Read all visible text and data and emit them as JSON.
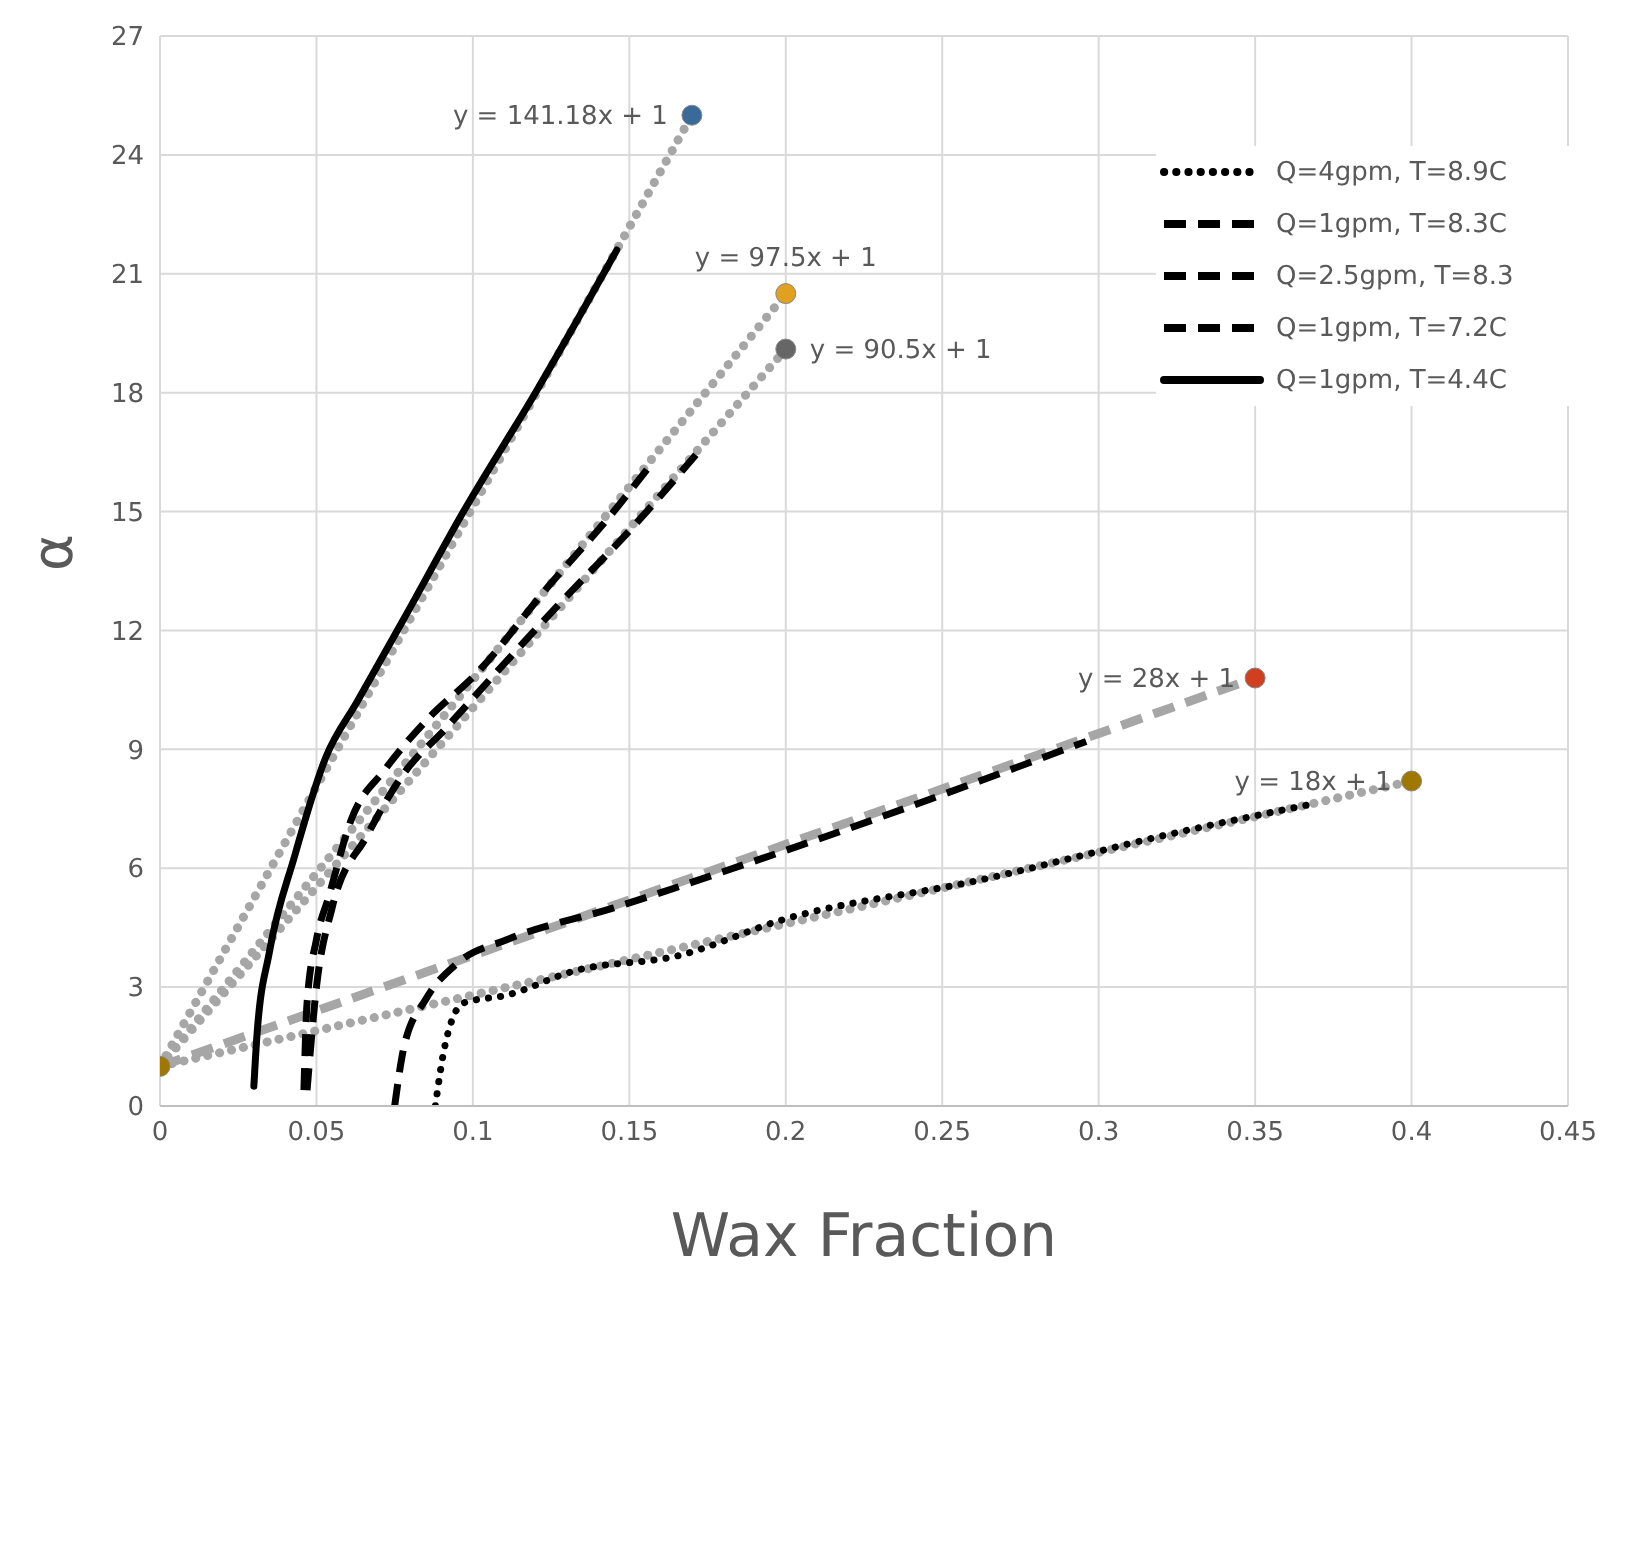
{
  "chart_data": {
    "type": "line",
    "xlabel": "Wax Fraction",
    "ylabel": "α",
    "xlim": [
      0,
      0.45
    ],
    "xticks": [
      0,
      0.05,
      0.1,
      0.15,
      0.2,
      0.25,
      0.3,
      0.35,
      0.4,
      0.45
    ],
    "ylim": [
      0,
      27
    ],
    "yticks": [
      0,
      3,
      6,
      9,
      12,
      15,
      18,
      21,
      24,
      27
    ],
    "grid": true,
    "legend": "top right",
    "series": [
      {
        "name": "Q=4gpm, T=8.9C",
        "color": "#000000",
        "line_style": "dotted",
        "x": [
          0.088,
          0.091,
          0.097,
          0.111,
          0.132,
          0.166,
          0.199,
          0.262,
          0.325,
          0.367
        ],
        "values": [
          0,
          1.5,
          2.6,
          2.8,
          3.4,
          3.8,
          4.7,
          5.7,
          6.9,
          7.6
        ]
      },
      {
        "name": "Q=1gpm, T=8.3C",
        "color": "#000000",
        "line_style": "dashed",
        "x": [
          0.046,
          0.047,
          0.05,
          0.054,
          0.061,
          0.072,
          0.086,
          0.101,
          0.124,
          0.145,
          0.157
        ],
        "values": [
          0.4,
          2.6,
          4.2,
          5.3,
          7.2,
          8.5,
          9.8,
          10.9,
          13.1,
          15,
          16.2
        ]
      },
      {
        "name": "Q=2.5gpm, T=8.3",
        "color": "#000000",
        "line_style": "dashed",
        "x": [
          0.075,
          0.078,
          0.085,
          0.095,
          0.111,
          0.145,
          0.187,
          0.22,
          0.262,
          0.296
        ],
        "values": [
          0,
          1.5,
          2.7,
          3.6,
          4.2,
          5,
          6.1,
          7,
          8.2,
          9.2
        ]
      },
      {
        "name": "Q=1gpm, T=7.2C",
        "color": "#000000",
        "line_style": "dashed",
        "x": [
          0.047,
          0.05,
          0.055,
          0.066,
          0.078,
          0.091,
          0.107,
          0.128,
          0.151,
          0.172
        ],
        "values": [
          0.4,
          3,
          5,
          6.8,
          8.4,
          9.5,
          10.9,
          12.7,
          14.6,
          16.5
        ]
      },
      {
        "name": "Q=1gpm, T=4.4C",
        "color": "#000000",
        "line_style": "solid",
        "x": [
          0.03,
          0.031,
          0.035,
          0.043,
          0.053,
          0.063,
          0.078,
          0.097,
          0.12,
          0.146
        ],
        "values": [
          0.5,
          1.8,
          3.9,
          6.3,
          8.8,
          10.2,
          12.3,
          15,
          18,
          21.6
        ]
      },
      {
        "color": "#a6a6a6",
        "line_style": "dotted",
        "x": [
          0,
          0.17
        ],
        "values": [
          1,
          25
        ]
      },
      {
        "color": "#a6a6a6",
        "line_style": "dotted",
        "x": [
          0,
          0.2
        ],
        "values": [
          1,
          20.5
        ]
      },
      {
        "color": "#a6a6a6",
        "line_style": "dotted",
        "x": [
          0,
          0.2
        ],
        "values": [
          1,
          19.1
        ]
      },
      {
        "color": "#a6a6a6",
        "line_style": "dashed",
        "x": [
          0,
          0.35
        ],
        "values": [
          1,
          10.8
        ]
      },
      {
        "color": "#a6a6a6",
        "line_style": "dotted",
        "x": [
          0,
          0.4
        ],
        "values": [
          1,
          8.2
        ]
      },
      {
        "type": "scatter",
        "marker": "circle",
        "x": [
          0,
          0.17,
          0.2,
          0.2,
          0.35,
          0.4
        ],
        "values": [
          1,
          25,
          20.5,
          19.1,
          10.8,
          8.2
        ],
        "colors": [
          "#a07800",
          "#3a6a9a",
          "#e0a020",
          "#666666",
          "#d04020",
          "#a07800"
        ]
      }
    ],
    "annotations": [
      {
        "text": "y = 141.18x + 1",
        "x": 0.17,
        "y": 25
      },
      {
        "text": "y = 97.5x + 1",
        "x": 0.2,
        "y": 20.5
      },
      {
        "text": "y = 90.5x + 1",
        "x": 0.2,
        "y": 19.1
      },
      {
        "text": "y = 28x + 1",
        "x": 0.35,
        "y": 10.8
      },
      {
        "text": "y = 18x + 1",
        "x": 0.4,
        "y": 8.2
      }
    ]
  }
}
